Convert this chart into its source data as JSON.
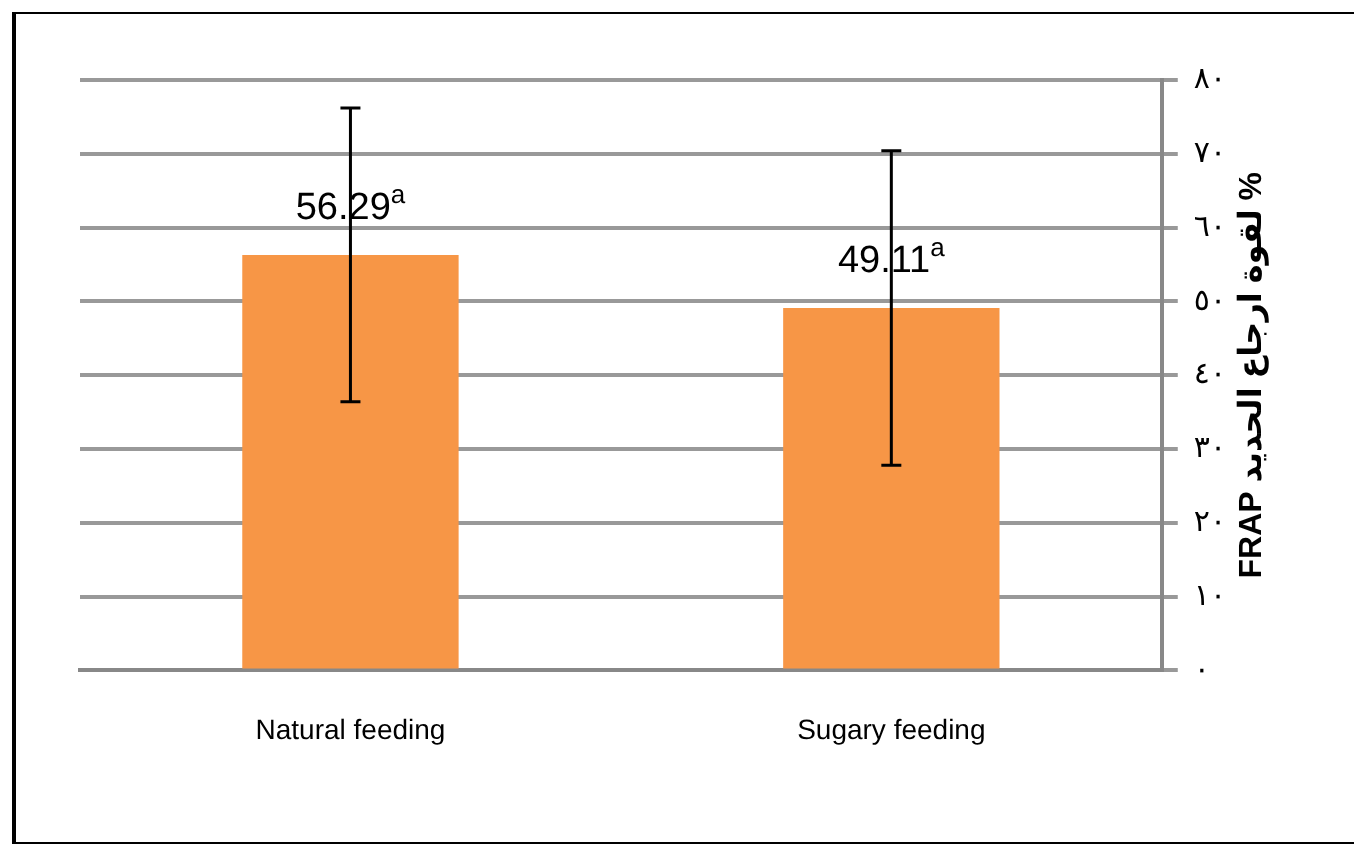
{
  "chart_data": {
    "type": "bar",
    "ylabel": "% لقوة ارجاع الحديد FRAP",
    "categories": [
      "Natural feeding",
      "Sugary feeding"
    ],
    "values": [
      56.29,
      49.11
    ],
    "color": "#f79646",
    "errors": [
      19.9,
      21.3
    ],
    "value_labels": [
      "56.29$^{a}$",
      "49.11$^{a}$"
    ],
    "ylim": [
      0,
      80
    ],
    "yticks": [
      {
        "value": 0,
        "label": "٠"
      },
      {
        "value": 10,
        "label": "١٠"
      },
      {
        "value": 20,
        "label": "٢٠"
      },
      {
        "value": 30,
        "label": "٣٠"
      },
      {
        "value": 40,
        "label": "٤٠"
      },
      {
        "value": 50,
        "label": "٥٠"
      },
      {
        "value": 60,
        "label": "٦٠"
      },
      {
        "value": 70,
        "label": "٧٠"
      },
      {
        "value": 80,
        "label": "٨٠"
      }
    ],
    "grid": "y",
    "legend": false
  }
}
